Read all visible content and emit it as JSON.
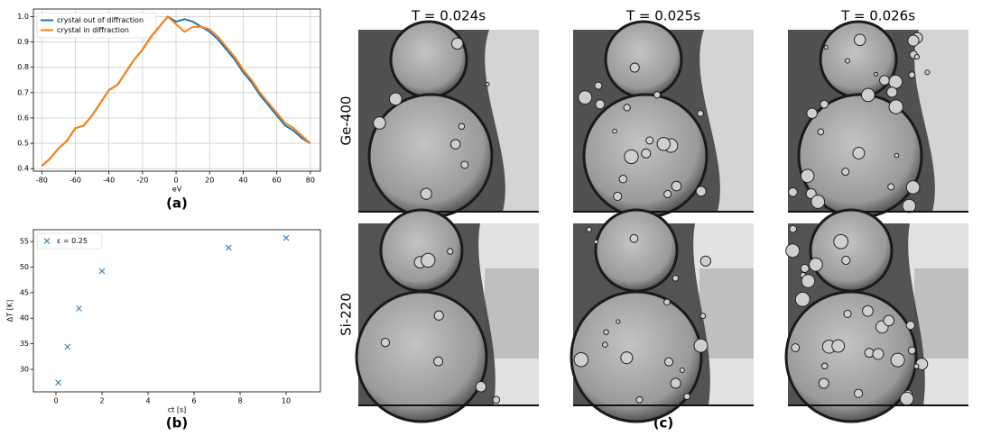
{
  "chart_data": [
    {
      "type": "line",
      "xlabel": "eV",
      "caption": "(a)",
      "x": [
        -80,
        -75,
        -70,
        -65,
        -60,
        -55,
        -50,
        -45,
        -40,
        -35,
        -30,
        -25,
        -20,
        -15,
        -10,
        -5,
        0,
        5,
        10,
        15,
        20,
        25,
        30,
        35,
        40,
        45,
        50,
        55,
        60,
        65,
        70,
        75,
        80
      ],
      "series": [
        {
          "name": "crystal out of diffraction",
          "color": "#1f77b4",
          "values": [
            0.41,
            0.44,
            0.48,
            0.51,
            0.56,
            0.57,
            0.61,
            0.66,
            0.71,
            0.73,
            0.78,
            0.83,
            0.87,
            0.92,
            0.96,
            1.0,
            0.98,
            0.99,
            0.98,
            0.96,
            0.94,
            0.91,
            0.87,
            0.83,
            0.78,
            0.74,
            0.69,
            0.65,
            0.61,
            0.57,
            0.55,
            0.52,
            0.5
          ]
        },
        {
          "name": "crystal in diffraction",
          "color": "#ff7f0e",
          "values": [
            0.41,
            0.44,
            0.48,
            0.51,
            0.56,
            0.57,
            0.61,
            0.66,
            0.71,
            0.73,
            0.78,
            0.83,
            0.87,
            0.92,
            0.96,
            1.0,
            0.97,
            0.94,
            0.96,
            0.96,
            0.95,
            0.92,
            0.88,
            0.84,
            0.79,
            0.75,
            0.7,
            0.66,
            0.62,
            0.58,
            0.56,
            0.53,
            0.5
          ]
        }
      ],
      "xlim": [
        -85,
        86
      ],
      "xticks": [
        -80,
        -60,
        -40,
        -20,
        0,
        20,
        40,
        60,
        80
      ],
      "ylim": [
        0.39,
        1.03
      ],
      "yticks": [
        0.4,
        0.5,
        0.6,
        0.7,
        0.8,
        0.9,
        {
          "value": 1.0,
          "label": "1.0"
        }
      ],
      "grid": true,
      "legend": "upper-left"
    },
    {
      "type": "scatter",
      "xlabel": "ct [s]",
      "ylabel": "ΔT [K]",
      "caption": "(b)",
      "series": [
        {
          "name": "ε = 0.25",
          "color": "#1f77b4",
          "x": [
            0.1,
            0.5,
            1,
            2,
            7.5,
            10
          ],
          "values": [
            27.4,
            34.4,
            41.9,
            49.2,
            53.8,
            55.7
          ]
        }
      ],
      "xlim": [
        -0.98,
        11.49
      ],
      "xticks": [
        0,
        2,
        4,
        6,
        8,
        10
      ],
      "ylim": [
        25.6,
        57.3
      ],
      "yticks": [
        30,
        35,
        40,
        45,
        50,
        55
      ],
      "grid": false,
      "legend": "upper-left"
    }
  ],
  "image_panel": {
    "column_titles": [
      "T = 0.024s",
      "T = 0.025s",
      "T = 0.026s"
    ],
    "row_labels": [
      "Ge-400",
      "Si-220"
    ],
    "caption": "(c)"
  }
}
